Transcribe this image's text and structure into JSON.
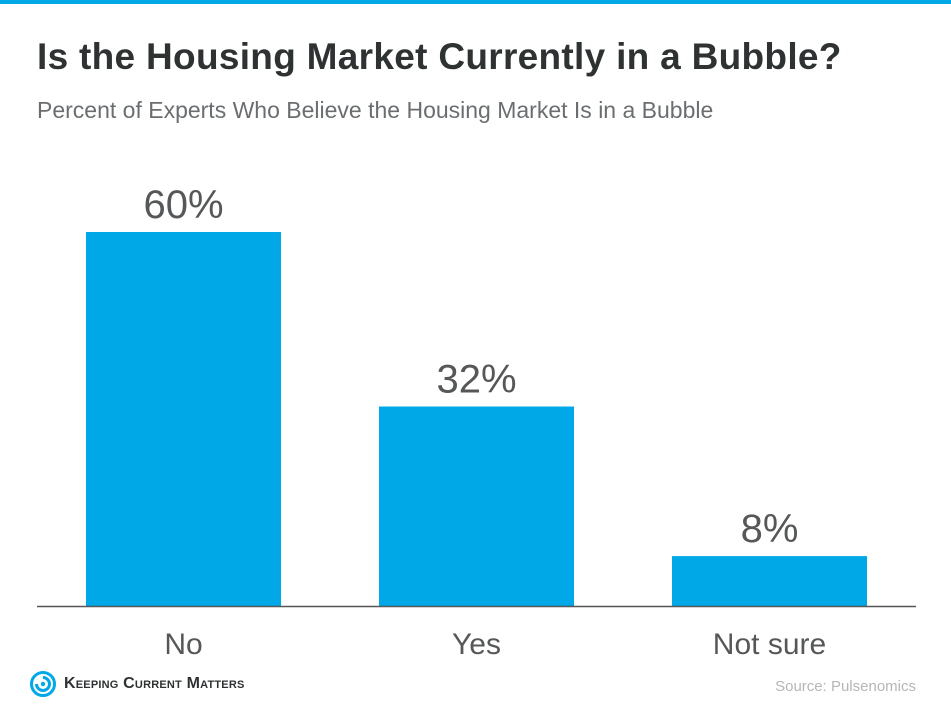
{
  "colors": {
    "accent": "#00a8e8",
    "bar": "#00a8e8",
    "text_dark": "#2f3233",
    "text_muted": "#6b6e70",
    "axis": "#555759",
    "source": "#b4b6b8"
  },
  "header": {
    "title": "Is the Housing Market Currently in a Bubble?",
    "subtitle": "Percent of Experts Who Believe the Housing Market Is in a Bubble"
  },
  "chart_data": {
    "type": "bar",
    "title": "Is the Housing Market Currently in a Bubble?",
    "subtitle": "Percent of Experts Who Believe the Housing Market Is in a Bubble",
    "categories": [
      "No",
      "Yes",
      "Not sure"
    ],
    "values": [
      60,
      32,
      8
    ],
    "value_labels": [
      "60%",
      "32%",
      "8%"
    ],
    "xlabel": "",
    "ylabel": "",
    "ylim": [
      0,
      60
    ],
    "grid": false,
    "legend": "none"
  },
  "footer": {
    "brand": "Keeping Current Matters",
    "logo_icon": "kcm-swirl-icon",
    "source": "Source: Pulsenomics"
  }
}
